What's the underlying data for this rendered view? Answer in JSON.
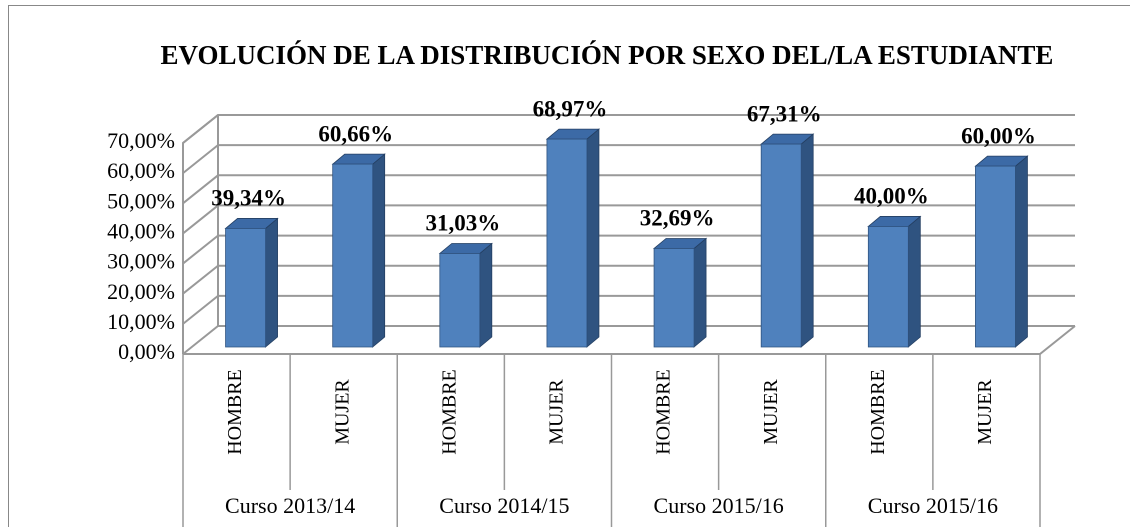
{
  "chart_data": {
    "type": "bar3d",
    "title": "EVOLUCIÓN DE LA DISTRIBUCIÓN POR SEXO DEL/LA ESTUDIANTE",
    "categories": [
      "HOMBRE",
      "MUJER",
      "HOMBRE",
      "MUJER",
      "HOMBRE",
      "MUJER",
      "HOMBRE",
      "MUJER"
    ],
    "group_labels": [
      "Curso 2013/14",
      "Curso 2014/15",
      "Curso 2015/16",
      "Curso 2015/16"
    ],
    "values": [
      39.34,
      60.66,
      31.03,
      68.97,
      32.69,
      67.31,
      40,
      60
    ],
    "value_labels": [
      "39,34%",
      "60,66%",
      "31,03%",
      "68,97%",
      "32,69%",
      "67,31%",
      "40,00%",
      "60,00%"
    ],
    "color": "#4f81bd",
    "ylim": [
      0,
      70
    ],
    "yticks": [
      {
        "value": 0,
        "label": "0,00%"
      },
      {
        "value": 10,
        "label": "10,00%"
      },
      {
        "value": 20,
        "label": "20,00%"
      },
      {
        "value": 30,
        "label": "30,00%"
      },
      {
        "value": 40,
        "label": "40,00%"
      },
      {
        "value": 50,
        "label": "50,00%"
      },
      {
        "value": 60,
        "label": "60,00%"
      },
      {
        "value": 70,
        "label": "70,00%"
      }
    ],
    "grid": true
  }
}
